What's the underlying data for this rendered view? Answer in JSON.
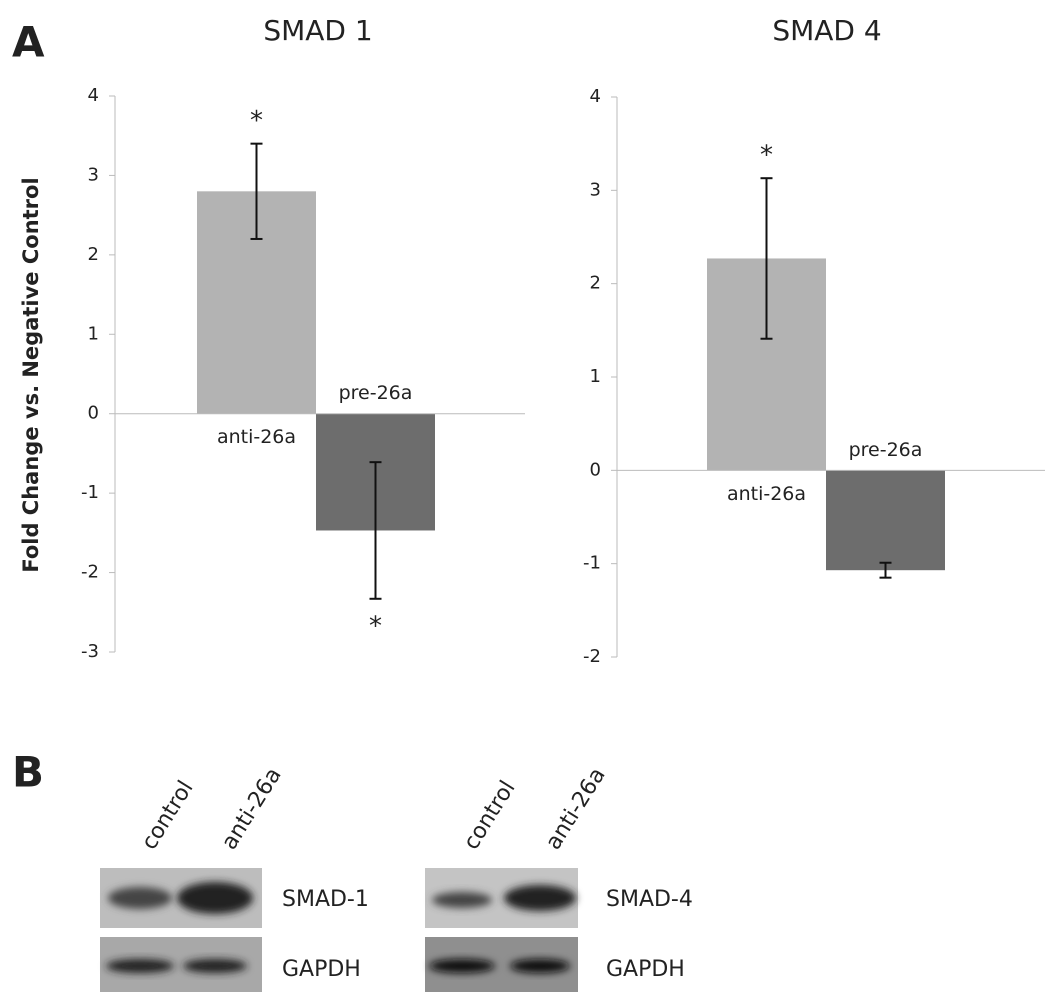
{
  "panel_labels": [
    "A",
    "B"
  ],
  "chart_data": [
    {
      "type": "bar",
      "title": "SMAD 1",
      "y_label": "Fold Change vs. Negative Control",
      "categories": [
        "anti-26a",
        "pre-26a"
      ],
      "values": [
        2.8,
        -1.47
      ],
      "errors": [
        0.6,
        0.86
      ],
      "annotations": [
        "*",
        "*"
      ],
      "colors": [
        "#b3b3b3",
        "#6d6d6d"
      ],
      "ylim": [
        -3,
        4
      ],
      "yticks": [
        -3,
        -2,
        -1,
        0,
        1,
        2,
        3,
        4
      ]
    },
    {
      "type": "bar",
      "title": "SMAD 4",
      "categories": [
        "anti-26a",
        "pre-26a"
      ],
      "values": [
        2.27,
        -1.07
      ],
      "errors": [
        0.86,
        0.08
      ],
      "annotations": [
        "*",
        null
      ],
      "colors": [
        "#b3b3b3",
        "#6d6d6d"
      ],
      "ylim": [
        -2,
        4
      ],
      "yticks": [
        -2,
        -1,
        0,
        1,
        2,
        3,
        4
      ]
    }
  ],
  "blots": [
    {
      "lanes": [
        "control",
        "anti-26a"
      ],
      "rows": [
        "SMAD-1",
        "GAPDH"
      ]
    },
    {
      "lanes": [
        "control",
        "anti-26a"
      ],
      "rows": [
        "SMAD-4",
        "GAPDH"
      ]
    }
  ]
}
